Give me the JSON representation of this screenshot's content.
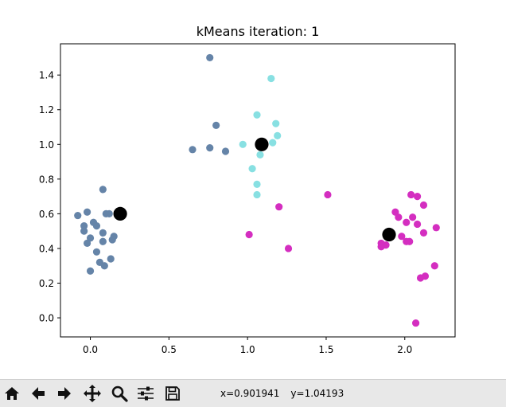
{
  "window": {
    "toolbar": {
      "buttons": [
        {
          "name": "home-icon",
          "tooltip": "Reset original view"
        },
        {
          "name": "back-arrow-icon",
          "tooltip": "Back to previous view"
        },
        {
          "name": "forward-arrow-icon",
          "tooltip": "Forward to next view"
        },
        {
          "name": "pan-icon",
          "tooltip": "Pan axes"
        },
        {
          "name": "zoom-icon",
          "tooltip": "Zoom to rectangle"
        },
        {
          "name": "configure-subplots-icon",
          "tooltip": "Configure subplots"
        },
        {
          "name": "save-icon",
          "tooltip": "Save the figure"
        }
      ],
      "coord_x": "x=0.901941",
      "coord_y": "y=1.04193"
    }
  },
  "chart_data": {
    "type": "scatter",
    "title": "kMeans iteration: 1",
    "xlabel": "",
    "ylabel": "",
    "xlim": [
      -0.19,
      2.32
    ],
    "ylim": [
      -0.11,
      1.58
    ],
    "xticks": [
      0.0,
      0.5,
      1.0,
      1.5,
      2.0
    ],
    "xtick_labels": [
      "0.0",
      "0.5",
      "1.0",
      "1.5",
      "2.0"
    ],
    "yticks": [
      0.0,
      0.2,
      0.4,
      0.6,
      0.8,
      1.0,
      1.2,
      1.4
    ],
    "ytick_labels": [
      "0.0",
      "0.2",
      "0.4",
      "0.6",
      "0.8",
      "1.0",
      "1.2",
      "1.4"
    ],
    "grid": false,
    "series": [
      {
        "color": "#6584a8",
        "points": [
          [
            0.08,
            0.74
          ],
          [
            -0.08,
            0.59
          ],
          [
            -0.02,
            0.61
          ],
          [
            0.02,
            0.55
          ],
          [
            -0.04,
            0.53
          ],
          [
            0.04,
            0.53
          ],
          [
            0.1,
            0.6
          ],
          [
            0.12,
            0.6
          ],
          [
            -0.04,
            0.5
          ],
          [
            0.0,
            0.46
          ],
          [
            0.08,
            0.49
          ],
          [
            0.15,
            0.47
          ],
          [
            0.14,
            0.45
          ],
          [
            -0.02,
            0.43
          ],
          [
            0.08,
            0.44
          ],
          [
            0.04,
            0.38
          ],
          [
            0.13,
            0.34
          ],
          [
            0.06,
            0.32
          ],
          [
            0.09,
            0.3
          ],
          [
            0.0,
            0.27
          ],
          [
            0.76,
            1.5
          ],
          [
            0.8,
            1.11
          ],
          [
            0.65,
            0.97
          ],
          [
            0.76,
            0.98
          ],
          [
            0.86,
            0.96
          ]
        ]
      },
      {
        "color": "#88e0e2",
        "points": [
          [
            1.15,
            1.38
          ],
          [
            1.06,
            1.17
          ],
          [
            1.18,
            1.12
          ],
          [
            1.19,
            1.05
          ],
          [
            1.16,
            1.01
          ],
          [
            0.97,
            1.0
          ],
          [
            1.09,
            0.99
          ],
          [
            1.08,
            0.94
          ],
          [
            1.03,
            0.86
          ],
          [
            1.06,
            0.77
          ],
          [
            1.06,
            0.71
          ]
        ]
      },
      {
        "color": "#d42ec0",
        "points": [
          [
            1.51,
            0.71
          ],
          [
            1.2,
            0.64
          ],
          [
            1.01,
            0.48
          ],
          [
            1.26,
            0.4
          ],
          [
            2.04,
            0.71
          ],
          [
            2.08,
            0.7
          ],
          [
            2.12,
            0.65
          ],
          [
            1.94,
            0.61
          ],
          [
            1.96,
            0.58
          ],
          [
            2.05,
            0.58
          ],
          [
            2.01,
            0.55
          ],
          [
            2.08,
            0.54
          ],
          [
            2.12,
            0.49
          ],
          [
            2.2,
            0.52
          ],
          [
            1.98,
            0.47
          ],
          [
            2.03,
            0.44
          ],
          [
            2.01,
            0.44
          ],
          [
            1.85,
            0.43
          ],
          [
            1.88,
            0.42
          ],
          [
            1.85,
            0.41
          ],
          [
            2.19,
            0.3
          ],
          [
            2.13,
            0.24
          ],
          [
            2.1,
            0.23
          ],
          [
            2.07,
            -0.03
          ]
        ]
      }
    ],
    "centroids": {
      "color": "#000000",
      "points": [
        [
          0.19,
          0.6
        ],
        [
          1.09,
          1.0
        ],
        [
          1.9,
          0.48
        ]
      ]
    }
  }
}
